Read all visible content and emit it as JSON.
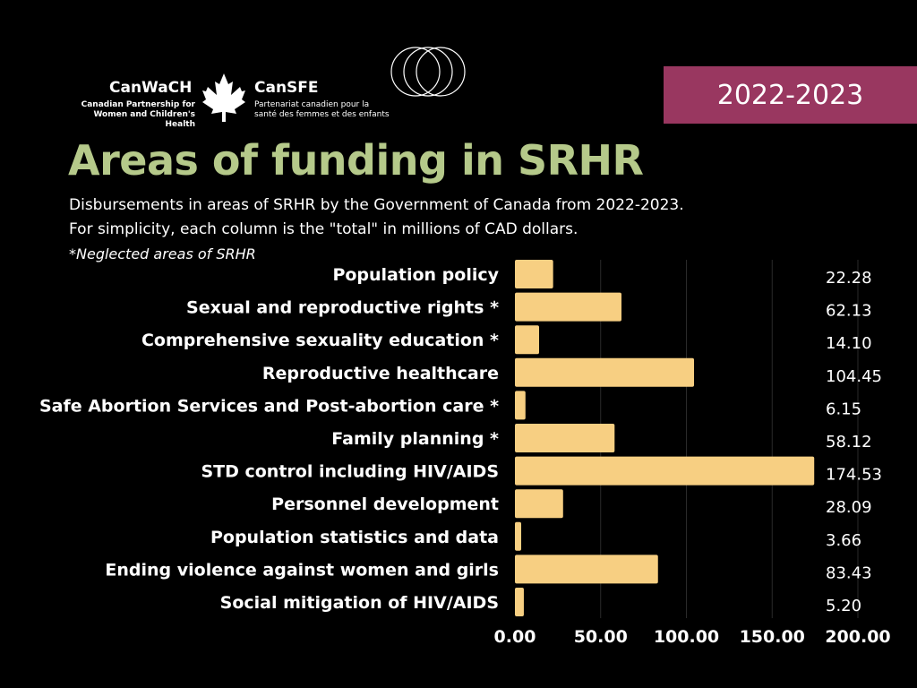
{
  "logo": {
    "en_name": "CanWaCH",
    "en_subtitle_line1": "Canadian Partnership for",
    "en_subtitle_line2": "Women and Children's Health",
    "fr_name": "CanSFE",
    "fr_subtitle_line1": "Partenariat canadien pour la",
    "fr_subtitle_line2": "santé des femmes et des enfants",
    "icon": "maple-leaf-icon",
    "decoration": "overlapping-rings-icon"
  },
  "year_badge": "2022-2023",
  "title": "Areas of funding in SRHR",
  "subtitle_line1": "Disbursements in areas of SRHR by the Government of Canada from 2022-2023.",
  "subtitle_line2": "For simplicity, each column is the \"total\" in millions of CAD dollars.",
  "note": "*Neglected areas of SRHR",
  "colors": {
    "background": "#000000",
    "title": "#b5c98a",
    "badge": "#993760",
    "bar": "#f7cf82",
    "gridline": "#2a2a2a",
    "text": "#ffffff"
  },
  "chart_data": {
    "type": "bar",
    "orientation": "horizontal",
    "categories": [
      "Population policy",
      "Sexual and reproductive rights *",
      "Comprehensive sexuality education *",
      "Reproductive healthcare",
      "Safe Abortion Services and Post-abortion care *",
      "Family planning *",
      "STD control including HIV/AIDS",
      "Personnel development",
      "Population statistics and data",
      "Ending violence against women and girls",
      "Social mitigation of HIV/AIDS"
    ],
    "values": [
      22.28,
      62.13,
      14.1,
      104.45,
      6.15,
      58.12,
      174.53,
      28.09,
      3.66,
      83.43,
      5.2
    ],
    "value_labels": [
      "22.28",
      "62.13",
      "14.10",
      "104.45",
      "6.15",
      "58.12",
      "174.53",
      "28.09",
      "3.66",
      "83.43",
      "5.20"
    ],
    "xlim": [
      0,
      200
    ],
    "xticks": [
      0,
      50,
      100,
      150,
      200
    ],
    "xtick_labels": [
      "0.00",
      "50.00",
      "100.00",
      "150.00",
      "200.00"
    ],
    "grid": "vertical",
    "title": "Areas of funding in SRHR",
    "xlabel": "",
    "ylabel": ""
  }
}
